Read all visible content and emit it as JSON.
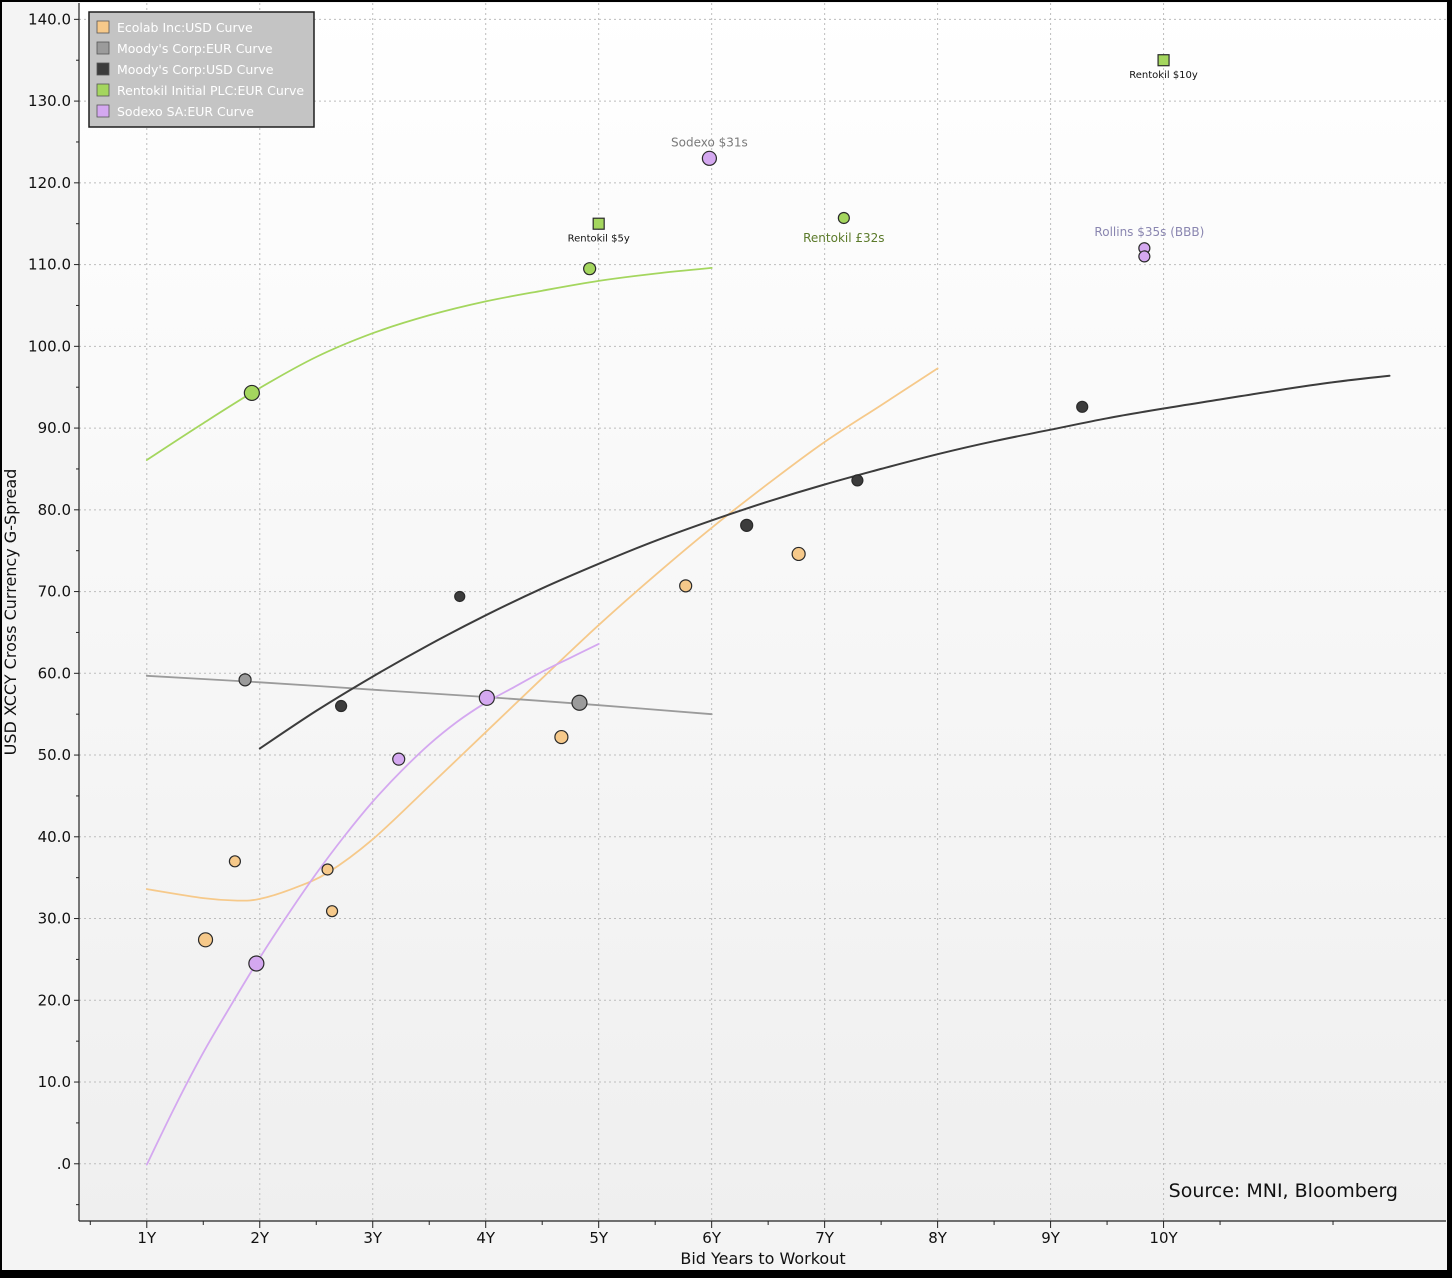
{
  "chart_data": {
    "type": "scatter",
    "xlabel": "Bid Years to Workout",
    "ylabel": "USD XCCY Cross Currency G-Spread",
    "xlim": [
      0.4,
      12.5
    ],
    "ylim": [
      -7,
      142
    ],
    "x_ticks": [
      {
        "value": 1,
        "label": "1Y"
      },
      {
        "value": 2,
        "label": "2Y"
      },
      {
        "value": 3,
        "label": "3Y"
      },
      {
        "value": 4,
        "label": "4Y"
      },
      {
        "value": 5,
        "label": "5Y"
      },
      {
        "value": 6,
        "label": "6Y"
      },
      {
        "value": 7,
        "label": "7Y"
      },
      {
        "value": 8,
        "label": "8Y"
      },
      {
        "value": 9,
        "label": "9Y"
      },
      {
        "value": 10,
        "label": "10Y"
      }
    ],
    "y_ticks": [
      {
        "value": 0,
        "label": ".0"
      },
      {
        "value": 10,
        "label": "10.0"
      },
      {
        "value": 20,
        "label": "20.0"
      },
      {
        "value": 30,
        "label": "30.0"
      },
      {
        "value": 40,
        "label": "40.0"
      },
      {
        "value": 50,
        "label": "50.0"
      },
      {
        "value": 60,
        "label": "60.0"
      },
      {
        "value": 70,
        "label": "70.0"
      },
      {
        "value": 80,
        "label": "80.0"
      },
      {
        "value": 90,
        "label": "90.0"
      },
      {
        "value": 100,
        "label": "100.0"
      },
      {
        "value": 110,
        "label": "110.0"
      },
      {
        "value": 120,
        "label": "120.0"
      },
      {
        "value": 130,
        "label": "130.0"
      },
      {
        "value": 140,
        "label": "140.0"
      }
    ],
    "grid": true,
    "legend_position": "top-left",
    "source_text": "Source: MNI, Bloomberg",
    "series": [
      {
        "name": "Ecolab Inc:USD Curve",
        "color": "#f6c98a",
        "points": [
          [
            1.52,
            27.4,
            7
          ],
          [
            1.78,
            37.0,
            5.5
          ],
          [
            2.6,
            36.0,
            5.5
          ],
          [
            2.64,
            30.9,
            5.5
          ],
          [
            4.67,
            52.2,
            6.5
          ],
          [
            5.77,
            70.7,
            6
          ],
          [
            6.77,
            74.6,
            6.5
          ]
        ],
        "curve": [
          [
            1.0,
            33.6
          ],
          [
            1.5,
            32.5
          ],
          [
            1.8,
            32.2
          ],
          [
            2.0,
            32.4
          ],
          [
            2.3,
            33.7
          ],
          [
            2.6,
            35.6
          ],
          [
            3.0,
            39.7
          ],
          [
            3.5,
            46.2
          ],
          [
            4.0,
            52.8
          ],
          [
            4.5,
            59.4
          ],
          [
            5.0,
            65.9
          ],
          [
            5.5,
            72.0
          ],
          [
            6.0,
            77.8
          ],
          [
            6.5,
            83.2
          ],
          [
            7.0,
            88.3
          ],
          [
            7.5,
            92.8
          ],
          [
            8.0,
            97.3
          ]
        ]
      },
      {
        "name": "Moody's Corp:EUR Curve",
        "color": "#9b9b9b",
        "points": [
          [
            1.87,
            59.2,
            6
          ],
          [
            4.83,
            56.4,
            7.5
          ]
        ],
        "curve": [
          [
            1.0,
            59.7
          ],
          [
            2.0,
            58.9
          ],
          [
            3.0,
            58.0
          ],
          [
            4.0,
            57.1
          ],
          [
            5.0,
            56.1
          ],
          [
            6.0,
            55.0
          ]
        ]
      },
      {
        "name": "Moody's Corp:USD Curve",
        "color": "#3c3c3c",
        "points": [
          [
            2.72,
            56.0,
            5.5
          ],
          [
            3.77,
            69.4,
            5
          ],
          [
            6.31,
            78.1,
            6
          ],
          [
            7.29,
            83.6,
            5.5
          ],
          [
            9.28,
            92.6,
            5.5
          ]
        ],
        "curve": [
          [
            2.0,
            50.8
          ],
          [
            2.5,
            55.4
          ],
          [
            3.0,
            59.6
          ],
          [
            3.5,
            63.5
          ],
          [
            4.0,
            67.1
          ],
          [
            4.5,
            70.4
          ],
          [
            5.0,
            73.4
          ],
          [
            5.5,
            76.2
          ],
          [
            6.0,
            78.7
          ],
          [
            6.5,
            81.0
          ],
          [
            7.0,
            83.1
          ],
          [
            7.5,
            85.0
          ],
          [
            8.0,
            86.8
          ],
          [
            8.5,
            88.4
          ],
          [
            9.0,
            89.8
          ],
          [
            9.5,
            91.2
          ],
          [
            10.0,
            92.4
          ],
          [
            10.5,
            93.5
          ],
          [
            11.0,
            94.6
          ],
          [
            11.5,
            95.6
          ],
          [
            12.0,
            96.4
          ]
        ]
      },
      {
        "name": "Rentokil Initial PLC:EUR Curve",
        "color": "#a4d65e",
        "points": [
          [
            1.93,
            94.3,
            7.5
          ],
          [
            4.92,
            109.5,
            6
          ],
          [
            7.17,
            115.7,
            5.5
          ]
        ],
        "squares": [
          [
            5.0,
            115.0,
            11
          ],
          [
            10.0,
            135.0,
            11
          ]
        ],
        "curve": [
          [
            1.0,
            86.1
          ],
          [
            1.5,
            90.6
          ],
          [
            2.0,
            94.9
          ],
          [
            2.5,
            98.7
          ],
          [
            3.0,
            101.6
          ],
          [
            3.5,
            103.8
          ],
          [
            4.0,
            105.5
          ],
          [
            4.5,
            106.8
          ],
          [
            5.0,
            108.0
          ],
          [
            5.5,
            108.9
          ],
          [
            6.0,
            109.6
          ]
        ]
      },
      {
        "name": "Sodexo SA:EUR Curve",
        "color": "#d4a8f0",
        "points": [
          [
            1.97,
            24.5,
            7.5
          ],
          [
            3.23,
            49.5,
            6
          ],
          [
            4.01,
            57.0,
            7.5
          ],
          [
            5.98,
            123.0,
            7
          ],
          [
            9.83,
            112.0,
            5.5
          ],
          [
            9.83,
            111.0,
            5.5
          ]
        ],
        "curve": [
          [
            1.0,
            -0.1
          ],
          [
            1.25,
            7.0
          ],
          [
            1.5,
            13.6
          ],
          [
            1.75,
            19.5
          ],
          [
            2.0,
            25.2
          ],
          [
            2.25,
            30.5
          ],
          [
            2.5,
            35.5
          ],
          [
            2.75,
            40.1
          ],
          [
            3.0,
            44.3
          ],
          [
            3.25,
            48.0
          ],
          [
            3.5,
            51.3
          ],
          [
            3.75,
            54.1
          ],
          [
            4.0,
            56.4
          ],
          [
            4.25,
            58.3
          ],
          [
            4.5,
            60.2
          ],
          [
            4.75,
            61.9
          ],
          [
            5.0,
            63.6
          ]
        ]
      }
    ],
    "annotations": [
      {
        "text": "Rentokil $5y",
        "x": 5.0,
        "y": 115.0,
        "color": "#111111",
        "size": 10
      },
      {
        "text": "Rentokil $10y",
        "x": 10.0,
        "y": 135.0,
        "color": "#111111",
        "size": 10
      },
      {
        "text": "Sodexo $31s",
        "x": 5.98,
        "y": 123.0,
        "color": "#7a7a7a",
        "size": 12
      },
      {
        "text": "Rentokil £32s",
        "x": 7.17,
        "y": 115.7,
        "color": "#5b7a2a",
        "size": 12
      },
      {
        "text": "Rollins $35s (BBB)",
        "x": 9.83,
        "y": 112.0,
        "color": "#8a86b0",
        "size": 12
      }
    ]
  }
}
